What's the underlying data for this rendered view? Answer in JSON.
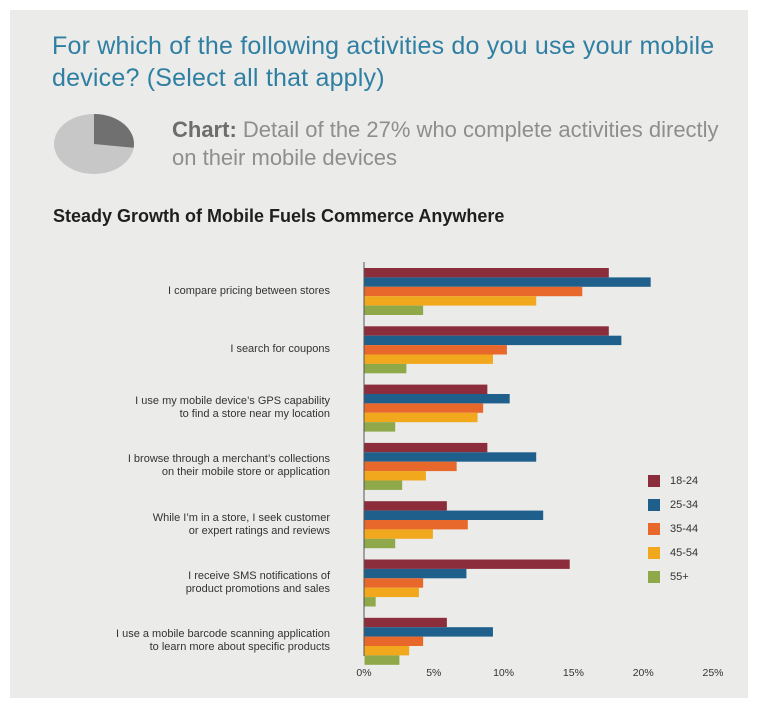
{
  "header": {
    "question": "For which of the following activities do you use your mobile device? (Select all that apply)",
    "note_bold": "Chart:",
    "note_text": " Detail of the 27% who complete activities directly on their mobile devices",
    "pie_share": 0.27
  },
  "chart_data": {
    "type": "bar",
    "orientation": "horizontal",
    "title": "Steady Growth of Mobile Fuels Commerce Anywhere",
    "categories": [
      [
        "I compare pricing between stores"
      ],
      [
        "I search for coupons"
      ],
      [
        "I use my mobile device’s GPS capability",
        "to find a store near my location"
      ],
      [
        "I browse through a merchant’s collections",
        "on their mobile store or application"
      ],
      [
        "While I’m in a store, I seek customer",
        "or expert ratings and reviews"
      ],
      [
        "I receive SMS notifications of",
        "product promotions and sales"
      ],
      [
        "I use a mobile barcode scanning application",
        "to learn more about specific products"
      ]
    ],
    "series": [
      {
        "name": "18-24",
        "color": "#8b2d3b",
        "values": [
          17.5,
          17.5,
          8.8,
          8.8,
          5.9,
          14.7,
          5.9
        ]
      },
      {
        "name": "25-34",
        "color": "#1f5f8b",
        "values": [
          20.5,
          18.4,
          10.4,
          12.3,
          12.8,
          7.3,
          9.2
        ]
      },
      {
        "name": "35-44",
        "color": "#e8672a",
        "values": [
          15.6,
          10.2,
          8.5,
          6.6,
          7.4,
          4.2,
          4.2
        ]
      },
      {
        "name": "45-54",
        "color": "#f2a81d",
        "values": [
          12.3,
          9.2,
          8.1,
          4.4,
          4.9,
          3.9,
          3.2
        ]
      },
      {
        "name": "55+",
        "color": "#8ea84a",
        "values": [
          4.2,
          3.0,
          2.2,
          2.7,
          2.2,
          0.8,
          2.5
        ]
      }
    ],
    "xlim": [
      0,
      25
    ],
    "xticks": [
      "0%",
      "5%",
      "10%",
      "15%",
      "20%",
      "25%"
    ],
    "xlabel": "",
    "ylabel": "",
    "legend_position": "right",
    "grid": false
  }
}
